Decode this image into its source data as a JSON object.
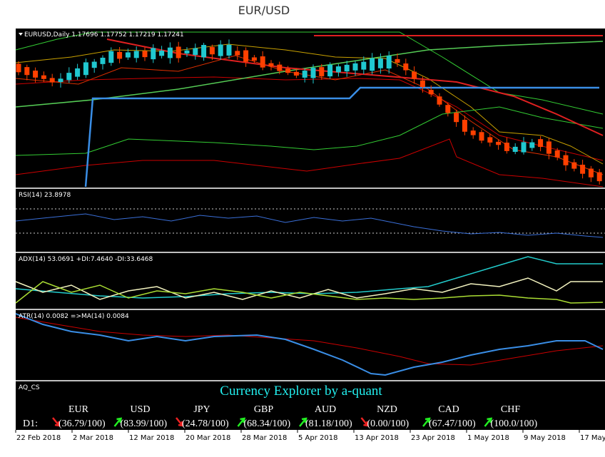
{
  "header": {
    "title": "EUR/USD"
  },
  "panels": {
    "main": {
      "label": "EURUSD,Daily  1.17696 1.17752 1.17219 1.17241"
    },
    "rsi": {
      "label": "RSI(14) 23.8978"
    },
    "adx": {
      "label": "ADX(14) 53.0691 +DI:7.4640 -DI:33.6468"
    },
    "atr": {
      "label": "ATR(14) 0.0082  =>MA(14) 0.0084"
    },
    "aq": {
      "label": "AQ_CS"
    }
  },
  "indicator": {
    "title": "Currency Explorer by a-quant",
    "row_label": "D1:",
    "currencies": [
      {
        "name": "EUR",
        "value": "(36.79/100)",
        "trend": "down"
      },
      {
        "name": "USD",
        "value": "(83.99/100)",
        "trend": "up"
      },
      {
        "name": "JPY",
        "value": "(24.78/100)",
        "trend": "down"
      },
      {
        "name": "GBP",
        "value": "(68.34/100)",
        "trend": "up"
      },
      {
        "name": "AUD",
        "value": "(81.18/100)",
        "trend": "up"
      },
      {
        "name": "NZD",
        "value": "(0.00/100)",
        "trend": "down"
      },
      {
        "name": "CAD",
        "value": "(67.47/100)",
        "trend": "up"
      },
      {
        "name": "CHF",
        "value": "(100.0/100)",
        "trend": "up"
      }
    ]
  },
  "dates": [
    "22 Feb 2018",
    "2 Mar 2018",
    "12 Mar 2018",
    "20 Mar 2018",
    "28 Mar 2018",
    "5 Apr 2018",
    "13 Apr 2018",
    "23 Apr 2018",
    "1 May 2018",
    "9 May 2018",
    "17 May"
  ]
}
